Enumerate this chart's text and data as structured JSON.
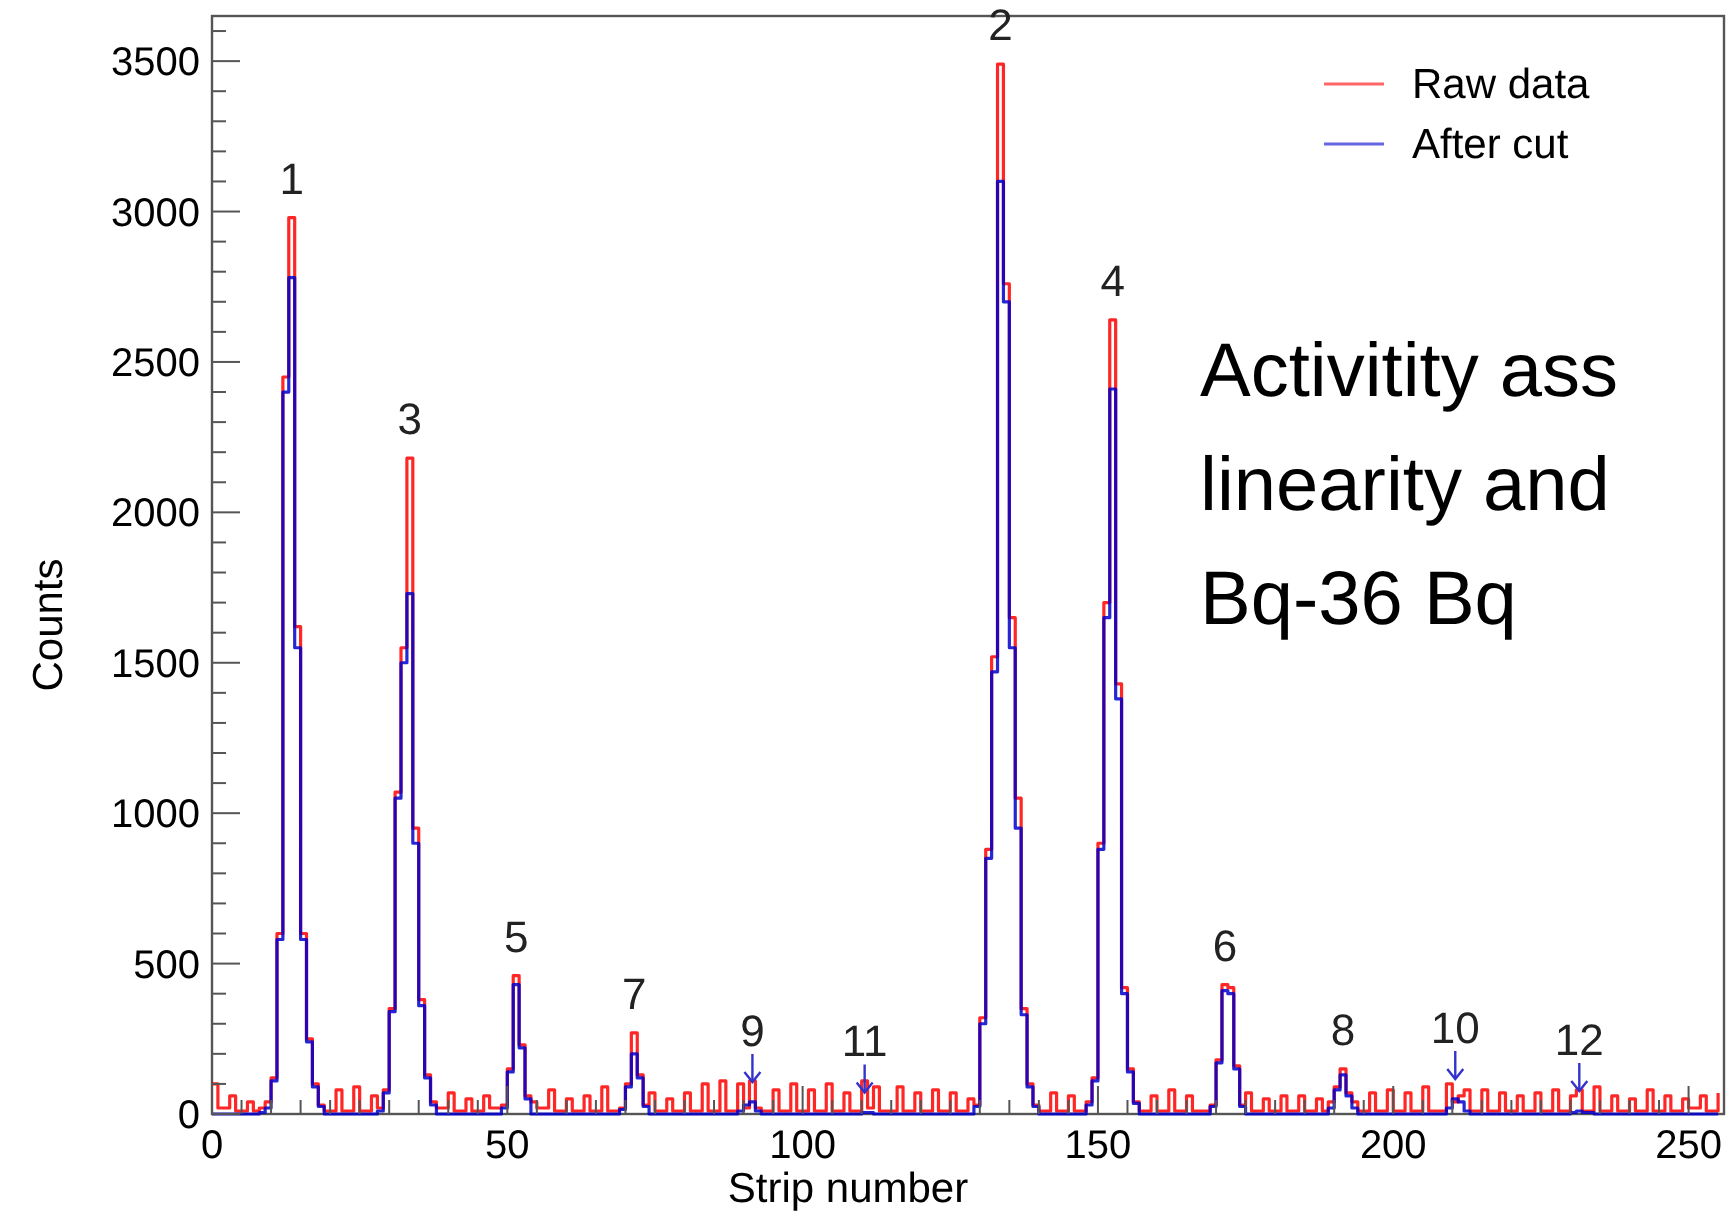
{
  "chart_data": {
    "type": "step",
    "xlabel": "Strip number",
    "ylabel": "Counts",
    "x": [
      0,
      1,
      3,
      4,
      6,
      7,
      8,
      9,
      10,
      11,
      12,
      13,
      14,
      15,
      16,
      17,
      18,
      19,
      21,
      22,
      24,
      25,
      27,
      28,
      29,
      30,
      31,
      32,
      33,
      34,
      35,
      36,
      37,
      38,
      40,
      41,
      43,
      44,
      46,
      47,
      49,
      50,
      51,
      52,
      53,
      54,
      55,
      57,
      58,
      60,
      61,
      63,
      64,
      66,
      67,
      69,
      70,
      71,
      72,
      73,
      74,
      75,
      77,
      78,
      80,
      81,
      83,
      84,
      86,
      87,
      89,
      90,
      91,
      92,
      93,
      95,
      96,
      98,
      99,
      101,
      102,
      104,
      105,
      107,
      108,
      110,
      111,
      112,
      113,
      116,
      117,
      119,
      120,
      122,
      123,
      125,
      126,
      128,
      129,
      130,
      131,
      132,
      133,
      134,
      135,
      136,
      137,
      138,
      139,
      140,
      142,
      143,
      145,
      146,
      148,
      149,
      150,
      151,
      152,
      153,
      154,
      155,
      156,
      157,
      159,
      160,
      162,
      163,
      165,
      166,
      169,
      170,
      171,
      172,
      173,
      174,
      175,
      176,
      178,
      179,
      181,
      182,
      184,
      185,
      187,
      188,
      189,
      190,
      191,
      192,
      193,
      194,
      196,
      197,
      199,
      200,
      202,
      203,
      205,
      206,
      209,
      210,
      211,
      212,
      213,
      215,
      216,
      218,
      219,
      221,
      222,
      224,
      225,
      227,
      228,
      230,
      231,
      232,
      234,
      235,
      237,
      238,
      240,
      241,
      243,
      244,
      246,
      247,
      249,
      250,
      252,
      253,
      255
    ],
    "series": [
      {
        "name": "Raw data",
        "color": "#ff0000",
        "values": [
          100,
          20,
          60,
          10,
          40,
          10,
          20,
          40,
          120,
          600,
          2450,
          2980,
          1620,
          600,
          250,
          100,
          30,
          10,
          80,
          10,
          90,
          10,
          60,
          20,
          80,
          350,
          1070,
          1550,
          2180,
          950,
          380,
          130,
          40,
          20,
          70,
          10,
          50,
          10,
          60,
          20,
          30,
          150,
          460,
          230,
          60,
          40,
          20,
          80,
          10,
          50,
          10,
          60,
          10,
          90,
          10,
          20,
          100,
          270,
          130,
          30,
          70,
          10,
          50,
          10,
          70,
          10,
          100,
          10,
          110,
          10,
          100,
          20,
          110,
          20,
          10,
          80,
          10,
          100,
          10,
          80,
          10,
          100,
          10,
          70,
          10,
          110,
          20,
          90,
          10,
          90,
          10,
          70,
          10,
          80,
          10,
          70,
          10,
          50,
          30,
          320,
          880,
          1520,
          3490,
          2760,
          1650,
          1050,
          350,
          100,
          30,
          10,
          70,
          10,
          60,
          10,
          40,
          120,
          900,
          1700,
          2640,
          1430,
          420,
          150,
          40,
          10,
          60,
          10,
          80,
          10,
          60,
          10,
          30,
          180,
          430,
          420,
          160,
          30,
          70,
          10,
          50,
          10,
          60,
          10,
          60,
          10,
          50,
          10,
          40,
          90,
          150,
          70,
          40,
          10,
          70,
          10,
          80,
          10,
          70,
          10,
          90,
          10,
          100,
          40,
          60,
          80,
          10,
          80,
          10,
          70,
          10,
          60,
          10,
          70,
          10,
          80,
          10,
          60,
          80,
          10,
          90,
          10,
          60,
          10,
          50,
          10,
          80,
          10,
          60,
          10,
          50,
          20,
          60,
          10,
          70
        ]
      },
      {
        "name": "After cut",
        "color": "#0000cc",
        "values": [
          0,
          0,
          0,
          0,
          0,
          0,
          5,
          20,
          110,
          580,
          2400,
          2780,
          1550,
          580,
          240,
          90,
          25,
          0,
          0,
          0,
          0,
          0,
          0,
          10,
          70,
          340,
          1050,
          1500,
          1730,
          900,
          360,
          120,
          30,
          0,
          0,
          0,
          0,
          0,
          0,
          0,
          20,
          140,
          430,
          220,
          50,
          0,
          0,
          0,
          0,
          0,
          0,
          0,
          0,
          0,
          0,
          15,
          90,
          200,
          120,
          25,
          0,
          0,
          0,
          0,
          0,
          0,
          0,
          0,
          0,
          0,
          10,
          30,
          40,
          10,
          0,
          0,
          0,
          0,
          0,
          0,
          0,
          0,
          0,
          0,
          0,
          5,
          5,
          0,
          0,
          0,
          0,
          0,
          0,
          0,
          0,
          0,
          0,
          0,
          25,
          300,
          850,
          1470,
          3100,
          2700,
          1550,
          950,
          330,
          90,
          25,
          0,
          0,
          0,
          0,
          0,
          30,
          110,
          880,
          1650,
          2410,
          1380,
          400,
          140,
          35,
          0,
          0,
          0,
          0,
          0,
          0,
          0,
          25,
          170,
          410,
          400,
          150,
          25,
          0,
          0,
          0,
          0,
          0,
          0,
          0,
          0,
          0,
          0,
          20,
          80,
          130,
          60,
          20,
          0,
          0,
          0,
          0,
          0,
          0,
          0,
          0,
          0,
          20,
          50,
          40,
          10,
          0,
          0,
          0,
          0,
          0,
          0,
          0,
          0,
          0,
          0,
          0,
          5,
          10,
          5,
          0,
          0,
          0,
          0,
          0,
          0,
          0,
          0,
          0,
          0,
          0,
          0,
          0,
          0,
          0
        ]
      }
    ],
    "xlim": [
      0,
      256
    ],
    "xticks": [
      0,
      50,
      100,
      150,
      200,
      250
    ],
    "ylim": [
      0,
      3650
    ],
    "yticks": [
      0,
      500,
      1000,
      1500,
      2000,
      2500,
      3000,
      3500
    ],
    "grid": false,
    "legend": "top right",
    "annotations": [
      {
        "text": "1",
        "x": 13,
        "y": 2980
      },
      {
        "text": "2",
        "x": 133,
        "y": 3490
      },
      {
        "text": "3",
        "x": 33,
        "y": 2180
      },
      {
        "text": "4",
        "x": 152,
        "y": 2640
      },
      {
        "text": "5",
        "x": 51,
        "y": 460
      },
      {
        "text": "6",
        "x": 171,
        "y": 430
      },
      {
        "text": "7",
        "x": 71,
        "y": 270
      },
      {
        "text": "8",
        "x": 191,
        "y": 150
      },
      {
        "text": "9",
        "x": 91,
        "y": 40
      },
      {
        "text": "10",
        "x": 210,
        "y": 50
      },
      {
        "text": "11",
        "x": 110,
        "y": 5
      },
      {
        "text": "12",
        "x": 231,
        "y": 10
      },
      "Activitity ass",
      "linearity and",
      "Bq-36 Bq"
    ]
  }
}
